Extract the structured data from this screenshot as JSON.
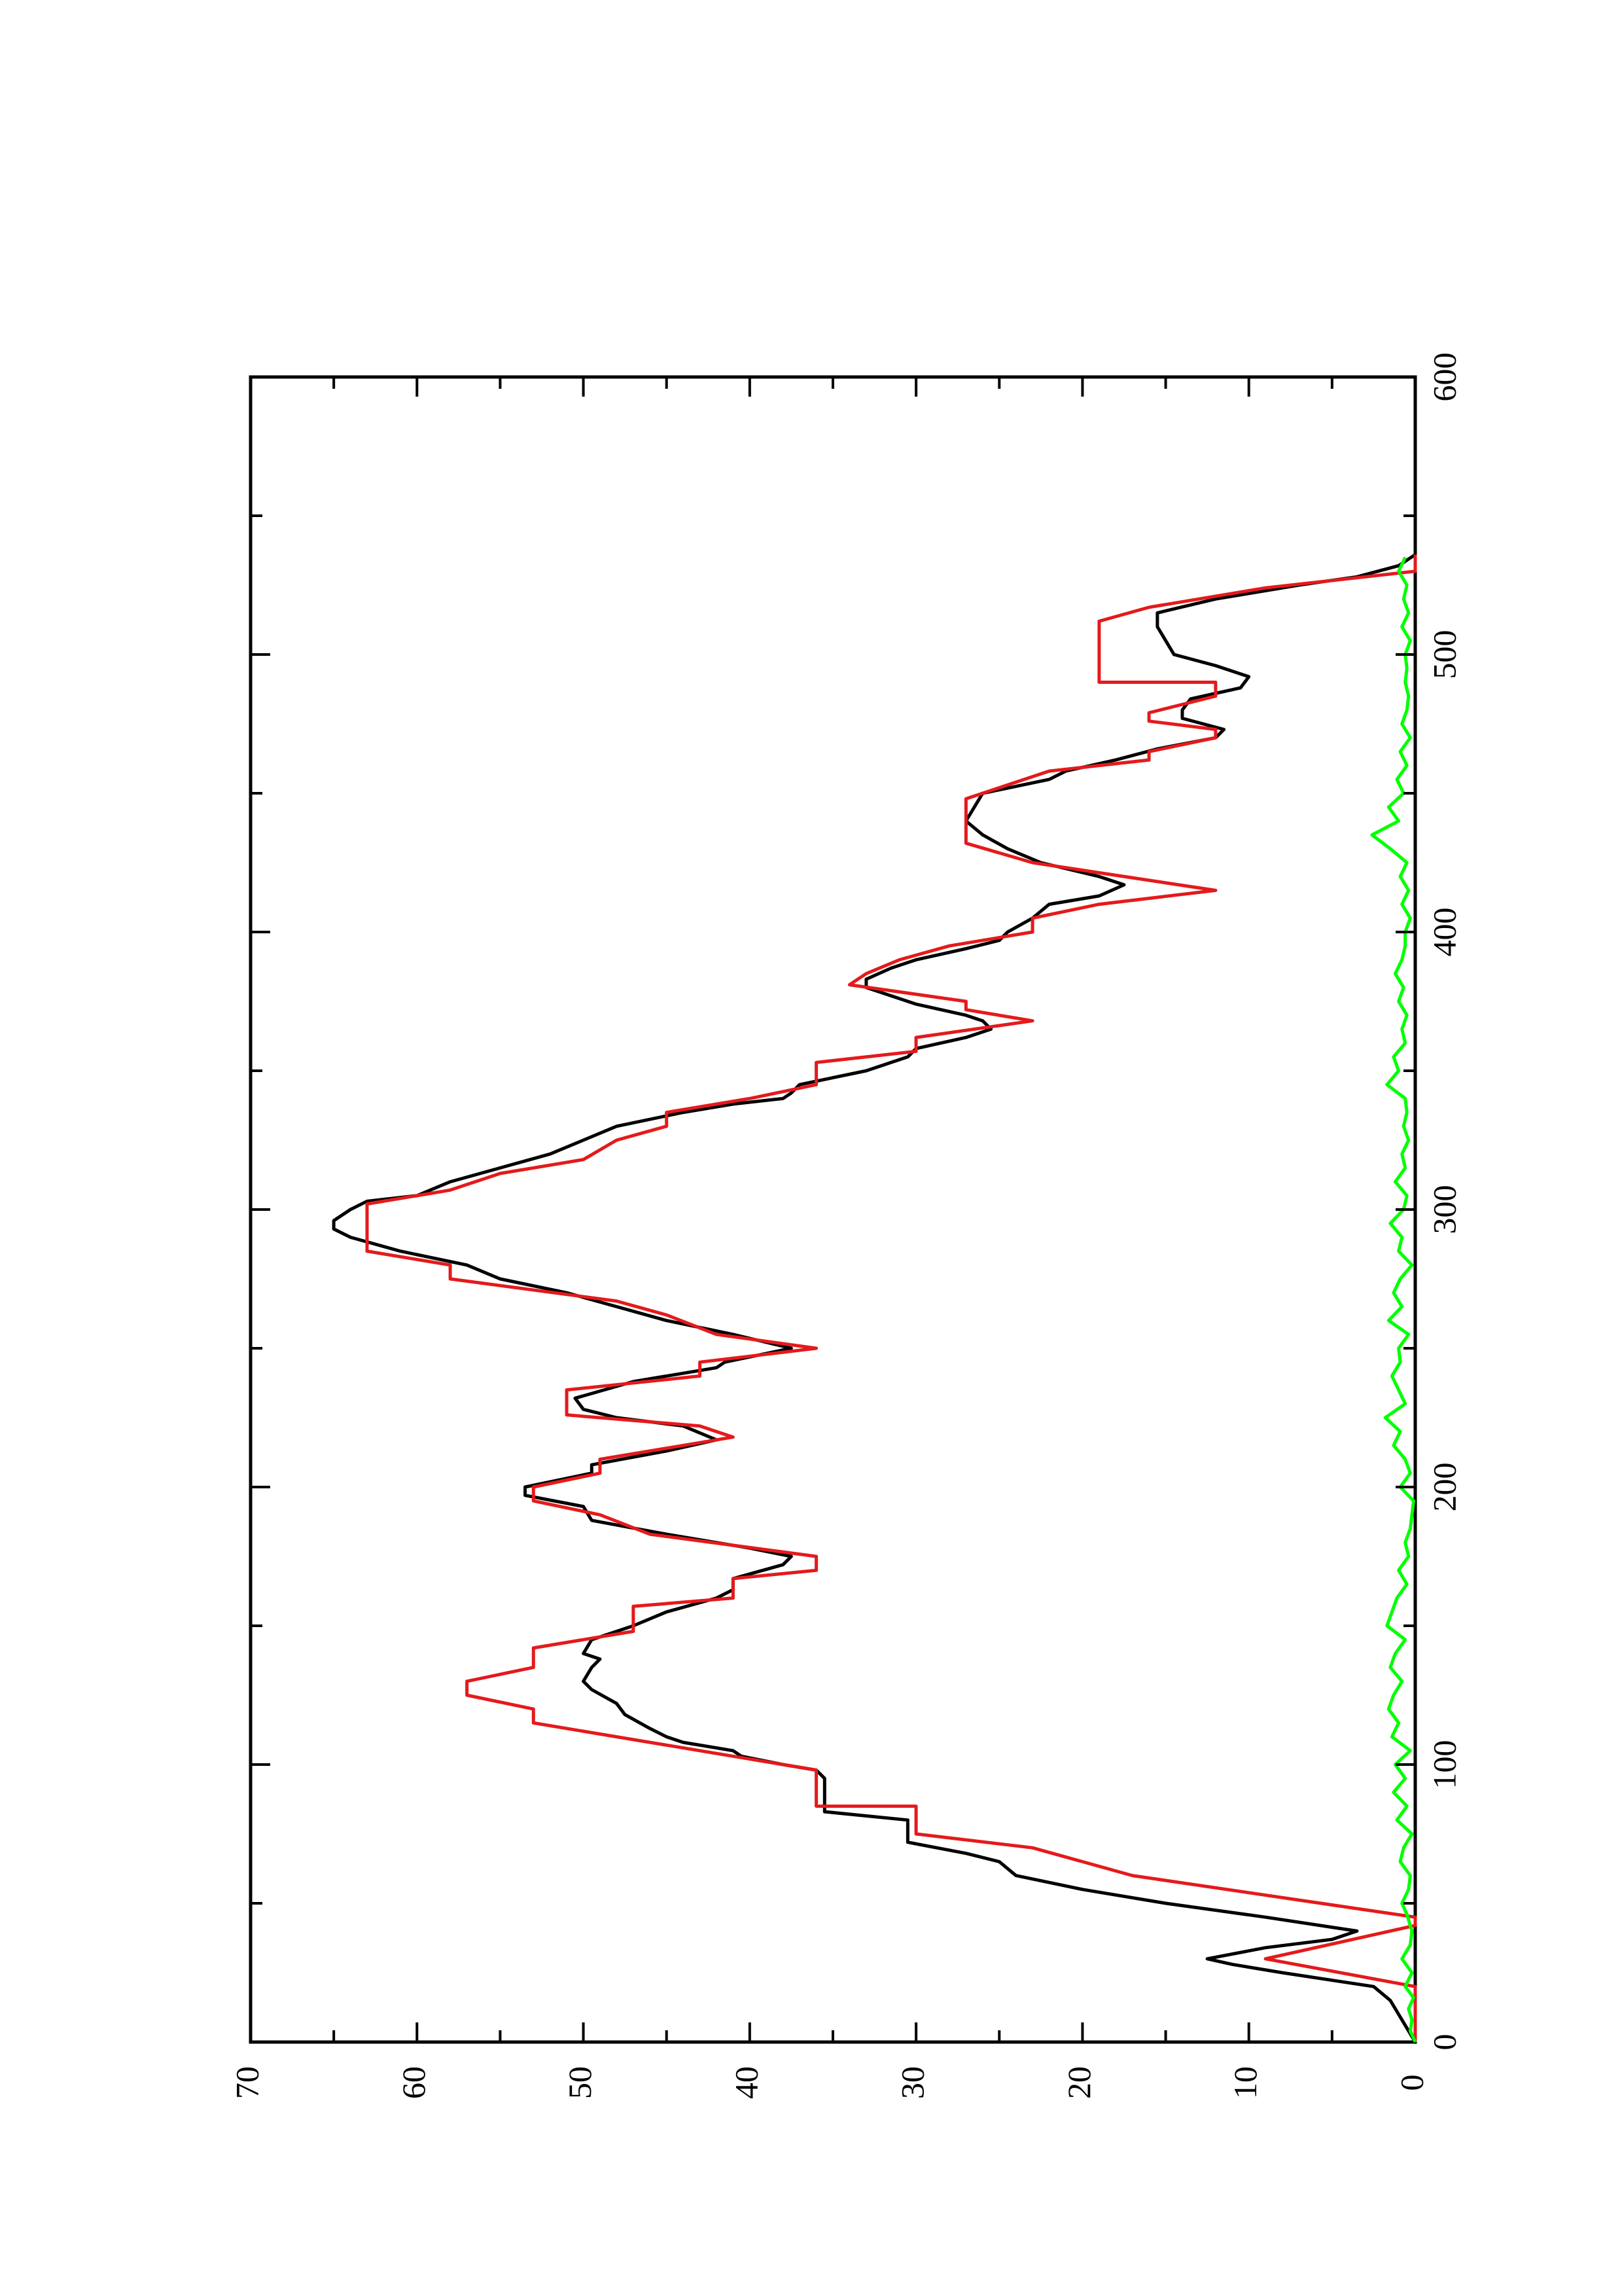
{
  "chart_data": {
    "type": "line",
    "orientation": "rotated-90-ccw",
    "title": "",
    "xlabel": "",
    "ylabel": "",
    "xlim": [
      0,
      600
    ],
    "ylim": [
      0,
      70
    ],
    "x_ticks": [
      "0",
      "100",
      "200",
      "300",
      "400",
      "500",
      "600"
    ],
    "y_ticks": [
      "0",
      "10",
      "20",
      "30",
      "40",
      "50",
      "60",
      "70"
    ],
    "x_minor_step": 50,
    "y_minor_step": 5,
    "grid": false,
    "legend": "none",
    "series": [
      {
        "color": "#000000",
        "points": [
          [
            0,
            0
          ],
          [
            5,
            0.5
          ],
          [
            10,
            1
          ],
          [
            15,
            1.5
          ],
          [
            20,
            2.5
          ],
          [
            25,
            8
          ],
          [
            28,
            11
          ],
          [
            30,
            12.5
          ],
          [
            34,
            9
          ],
          [
            37,
            5
          ],
          [
            40,
            3.5
          ],
          [
            45,
            9
          ],
          [
            50,
            15
          ],
          [
            55,
            20
          ],
          [
            60,
            24
          ],
          [
            65,
            25
          ],
          [
            68,
            27
          ],
          [
            72,
            30.5
          ],
          [
            80,
            30.5
          ],
          [
            83,
            35.5
          ],
          [
            95,
            35.5
          ],
          [
            98,
            36
          ],
          [
            100,
            38
          ],
          [
            103,
            40.5
          ],
          [
            105,
            41
          ],
          [
            108,
            44
          ],
          [
            110,
            45
          ],
          [
            113,
            46
          ],
          [
            118,
            47.5
          ],
          [
            122,
            48
          ],
          [
            127,
            49.5
          ],
          [
            130,
            50
          ],
          [
            135,
            49.5
          ],
          [
            138,
            49
          ],
          [
            140,
            50
          ],
          [
            145,
            49.5
          ],
          [
            150,
            47
          ],
          [
            155,
            45
          ],
          [
            160,
            42
          ],
          [
            163,
            41
          ],
          [
            167,
            41
          ],
          [
            172,
            38
          ],
          [
            175,
            37.5
          ],
          [
            178,
            40
          ],
          [
            183,
            45
          ],
          [
            188,
            49.5
          ],
          [
            193,
            50
          ],
          [
            197,
            53.5
          ],
          [
            200,
            53.5
          ],
          [
            205,
            49.5
          ],
          [
            208,
            49.5
          ],
          [
            213,
            45
          ],
          [
            217,
            42
          ],
          [
            222,
            44
          ],
          [
            225,
            48
          ],
          [
            228,
            50
          ],
          [
            232,
            50.5
          ],
          [
            238,
            47
          ],
          [
            243,
            42
          ],
          [
            245,
            41.5
          ],
          [
            250,
            37.5
          ],
          [
            255,
            41
          ],
          [
            260,
            45
          ],
          [
            265,
            48
          ],
          [
            270,
            51
          ],
          [
            275,
            55
          ],
          [
            280,
            57
          ],
          [
            285,
            61
          ],
          [
            290,
            64
          ],
          [
            293,
            65
          ],
          [
            296,
            65
          ],
          [
            300,
            64
          ],
          [
            303,
            63
          ],
          [
            305,
            60
          ],
          [
            310,
            58
          ],
          [
            315,
            55
          ],
          [
            320,
            52
          ],
          [
            325,
            50
          ],
          [
            330,
            48
          ],
          [
            335,
            44
          ],
          [
            338,
            41
          ],
          [
            340,
            38
          ],
          [
            342,
            37.5
          ],
          [
            345,
            37
          ],
          [
            350,
            33
          ],
          [
            355,
            30.5
          ],
          [
            358,
            30
          ],
          [
            362,
            27
          ],
          [
            365,
            25.5
          ],
          [
            368,
            26
          ],
          [
            370,
            27
          ],
          [
            374,
            30
          ],
          [
            378,
            32
          ],
          [
            380,
            33
          ],
          [
            383,
            33
          ],
          [
            387,
            31.5
          ],
          [
            390,
            30
          ],
          [
            394,
            27
          ],
          [
            397,
            25
          ],
          [
            400,
            24.5
          ],
          [
            405,
            23
          ],
          [
            410,
            22
          ],
          [
            413,
            19
          ],
          [
            417,
            17.5
          ],
          [
            420,
            19
          ],
          [
            425,
            22.5
          ],
          [
            430,
            24.5
          ],
          [
            435,
            26
          ],
          [
            440,
            27
          ],
          [
            445,
            26.5
          ],
          [
            450,
            26
          ],
          [
            455,
            22
          ],
          [
            458,
            21
          ],
          [
            462,
            18
          ],
          [
            466,
            15.5
          ],
          [
            470,
            12
          ],
          [
            473,
            11.5
          ],
          [
            477,
            14
          ],
          [
            480,
            14
          ],
          [
            484,
            13.5
          ],
          [
            488,
            10.5
          ],
          [
            492,
            10
          ],
          [
            496,
            12
          ],
          [
            500,
            14.5
          ],
          [
            505,
            15
          ],
          [
            510,
            15.5
          ],
          [
            515,
            15.5
          ],
          [
            520,
            12
          ],
          [
            525,
            7
          ],
          [
            528,
            3.5
          ],
          [
            532,
            1
          ],
          [
            536,
            0
          ]
        ]
      },
      {
        "color": "#e41a1c",
        "points": [
          [
            0,
            0
          ],
          [
            20,
            0
          ],
          [
            30,
            9
          ],
          [
            42,
            0
          ],
          [
            45,
            0
          ],
          [
            60,
            17
          ],
          [
            70,
            23
          ],
          [
            75,
            30
          ],
          [
            85,
            30
          ],
          [
            85,
            36
          ],
          [
            98,
            36
          ],
          [
            108,
            46
          ],
          [
            115,
            53
          ],
          [
            120,
            53
          ],
          [
            125,
            57
          ],
          [
            130,
            57
          ],
          [
            135,
            53
          ],
          [
            142,
            53
          ],
          [
            148,
            47
          ],
          [
            157,
            47
          ],
          [
            160,
            41
          ],
          [
            167,
            41
          ],
          [
            170,
            36
          ],
          [
            175,
            36
          ],
          [
            183,
            46
          ],
          [
            190,
            49
          ],
          [
            195,
            53
          ],
          [
            200,
            53
          ],
          [
            205,
            49
          ],
          [
            210,
            49
          ],
          [
            218,
            41
          ],
          [
            222,
            43
          ],
          [
            226,
            51
          ],
          [
            235,
            51
          ],
          [
            240,
            43
          ],
          [
            245,
            43
          ],
          [
            250,
            36
          ],
          [
            255,
            42
          ],
          [
            262,
            45
          ],
          [
            267,
            48
          ],
          [
            275,
            58
          ],
          [
            280,
            58
          ],
          [
            285,
            63
          ],
          [
            302,
            63
          ],
          [
            307,
            58
          ],
          [
            313,
            55
          ],
          [
            318,
            50
          ],
          [
            325,
            48
          ],
          [
            330,
            45
          ],
          [
            335,
            45
          ],
          [
            340,
            40
          ],
          [
            345,
            36
          ],
          [
            353,
            36
          ],
          [
            357,
            30
          ],
          [
            362,
            30
          ],
          [
            368,
            23
          ],
          [
            372,
            27
          ],
          [
            375,
            27
          ],
          [
            381,
            34
          ],
          [
            385,
            33
          ],
          [
            390,
            31
          ],
          [
            395,
            28
          ],
          [
            400,
            23
          ],
          [
            405,
            23
          ],
          [
            410,
            19
          ],
          [
            415,
            12
          ],
          [
            425,
            23
          ],
          [
            432,
            27
          ],
          [
            437,
            27
          ],
          [
            448,
            27
          ],
          [
            452,
            25
          ],
          [
            458,
            22
          ],
          [
            462,
            16
          ],
          [
            465,
            16
          ],
          [
            470,
            12
          ],
          [
            473,
            12
          ],
          [
            476,
            16
          ],
          [
            479,
            16
          ],
          [
            485,
            12
          ],
          [
            490,
            12
          ],
          [
            490,
            19
          ],
          [
            512,
            19
          ],
          [
            517,
            16
          ],
          [
            524,
            9
          ],
          [
            530,
            0
          ],
          [
            536,
            0
          ]
        ]
      },
      {
        "color": "#00ff00",
        "points": [
          [
            0,
            0
          ],
          [
            4,
            0.3
          ],
          [
            8,
            0.2
          ],
          [
            12,
            0.4
          ],
          [
            16,
            0.1
          ],
          [
            20,
            0.6
          ],
          [
            25,
            0.2
          ],
          [
            30,
            0.8
          ],
          [
            35,
            0.3
          ],
          [
            40,
            0.2
          ],
          [
            46,
            0.5
          ],
          [
            50,
            0.8
          ],
          [
            55,
            0.4
          ],
          [
            60,
            0.3
          ],
          [
            65,
            0.9
          ],
          [
            70,
            0.7
          ],
          [
            75,
            0.2
          ],
          [
            80,
            1.1
          ],
          [
            85,
            0.5
          ],
          [
            90,
            1.3
          ],
          [
            95,
            0.6
          ],
          [
            100,
            1.2
          ],
          [
            105,
            0.3
          ],
          [
            110,
            1.4
          ],
          [
            115,
            1.0
          ],
          [
            120,
            1.6
          ],
          [
            125,
            1.3
          ],
          [
            130,
            0.8
          ],
          [
            135,
            1.5
          ],
          [
            140,
            1.2
          ],
          [
            145,
            0.6
          ],
          [
            150,
            1.7
          ],
          [
            155,
            1.4
          ],
          [
            160,
            1.1
          ],
          [
            165,
            0.5
          ],
          [
            170,
            1.0
          ],
          [
            175,
            0.4
          ],
          [
            180,
            0.6
          ],
          [
            185,
            0.3
          ],
          [
            190,
            0.2
          ],
          [
            195,
            0.1
          ],
          [
            200,
            0.9
          ],
          [
            205,
            0.3
          ],
          [
            210,
            0.6
          ],
          [
            215,
            1.3
          ],
          [
            220,
            0.9
          ],
          [
            225,
            1.8
          ],
          [
            230,
            0.6
          ],
          [
            235,
            1.0
          ],
          [
            240,
            1.4
          ],
          [
            245,
            0.9
          ],
          [
            250,
            1.0
          ],
          [
            255,
            0.4
          ],
          [
            260,
            1.6
          ],
          [
            265,
            0.8
          ],
          [
            270,
            1.3
          ],
          [
            275,
            0.9
          ],
          [
            280,
            0.2
          ],
          [
            285,
            1.0
          ],
          [
            290,
            0.8
          ],
          [
            295,
            1.5
          ],
          [
            300,
            0.7
          ],
          [
            305,
            0.5
          ],
          [
            310,
            1.2
          ],
          [
            315,
            0.6
          ],
          [
            320,
            0.8
          ],
          [
            325,
            0.4
          ],
          [
            330,
            0.7
          ],
          [
            335,
            0.5
          ],
          [
            340,
            0.6
          ],
          [
            345,
            1.7
          ],
          [
            350,
            1.0
          ],
          [
            355,
            1.3
          ],
          [
            360,
            0.6
          ],
          [
            365,
            0.8
          ],
          [
            370,
            0.5
          ],
          [
            375,
            1.0
          ],
          [
            380,
            0.7
          ],
          [
            385,
            1.2
          ],
          [
            390,
            0.8
          ],
          [
            395,
            0.6
          ],
          [
            400,
            0.6
          ],
          [
            405,
            0.3
          ],
          [
            410,
            0.8
          ],
          [
            415,
            0.4
          ],
          [
            420,
            0.9
          ],
          [
            425,
            0.5
          ],
          [
            430,
            1.5
          ],
          [
            435,
            2.6
          ],
          [
            440,
            1.0
          ],
          [
            445,
            1.6
          ],
          [
            450,
            0.7
          ],
          [
            455,
            1.1
          ],
          [
            460,
            0.5
          ],
          [
            465,
            0.9
          ],
          [
            470,
            0.3
          ],
          [
            475,
            0.8
          ],
          [
            480,
            0.5
          ],
          [
            485,
            0.4
          ],
          [
            490,
            0.6
          ],
          [
            495,
            0.5
          ],
          [
            500,
            0.6
          ],
          [
            505,
            0.3
          ],
          [
            510,
            0.8
          ],
          [
            515,
            0.4
          ],
          [
            520,
            0.7
          ],
          [
            525,
            0.5
          ],
          [
            530,
            1.0
          ],
          [
            535,
            0.6
          ]
        ]
      }
    ]
  }
}
